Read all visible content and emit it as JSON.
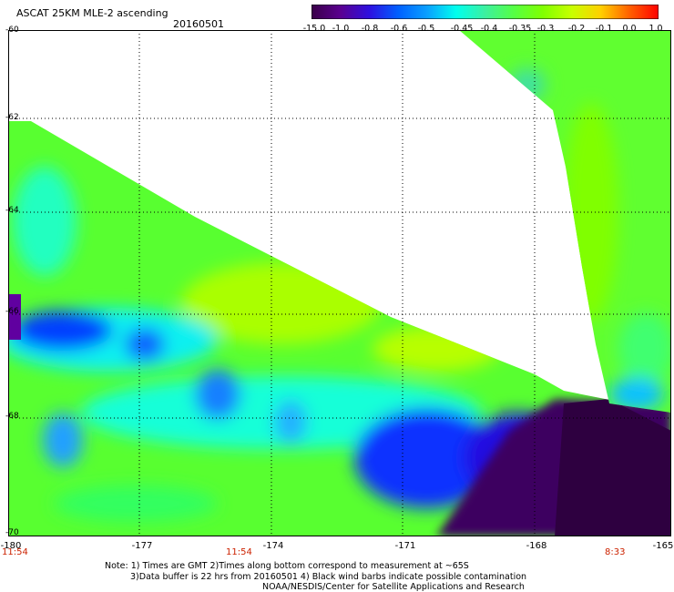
{
  "header": {
    "title": "ASCAT 25KM MLE-2 ascending",
    "date": "20160501"
  },
  "colorbar": {
    "labels": [
      "-15.0",
      "-1.0",
      "-0.8",
      "-0.6",
      "-0.5",
      "-0.45",
      "-0.4",
      "-0.35",
      "-0.3",
      "-0.2",
      "-0.1",
      "0.0",
      "1.0"
    ],
    "colors": [
      "#3a0048",
      "#5a0090",
      "#2e10e0",
      "#0060ff",
      "#0aa0ff",
      "#00ffee",
      "#3cf0a0",
      "#55ff44",
      "#80ff00",
      "#c8ff00",
      "#ffd000",
      "#ff6000",
      "#ff0000"
    ]
  },
  "axes": {
    "y_labels": [
      "-60",
      "-62",
      "-64",
      "-66",
      "-68",
      "-70"
    ],
    "x_labels": [
      "-180",
      "-177",
      "-174",
      "-171",
      "-168",
      "-165"
    ],
    "time_labels": [
      "11:54",
      "11:54",
      "8:33"
    ]
  },
  "notes": {
    "line1": "Note: 1) Times are GMT 2)Times along bottom correspond to measurement at ~65S",
    "line2": "3)Data buffer is 22 hrs from 20160501 4) Black wind barbs indicate possible contamination",
    "line3": "NOAA/NESDIS/Center for Satellite Applications and Research"
  }
}
